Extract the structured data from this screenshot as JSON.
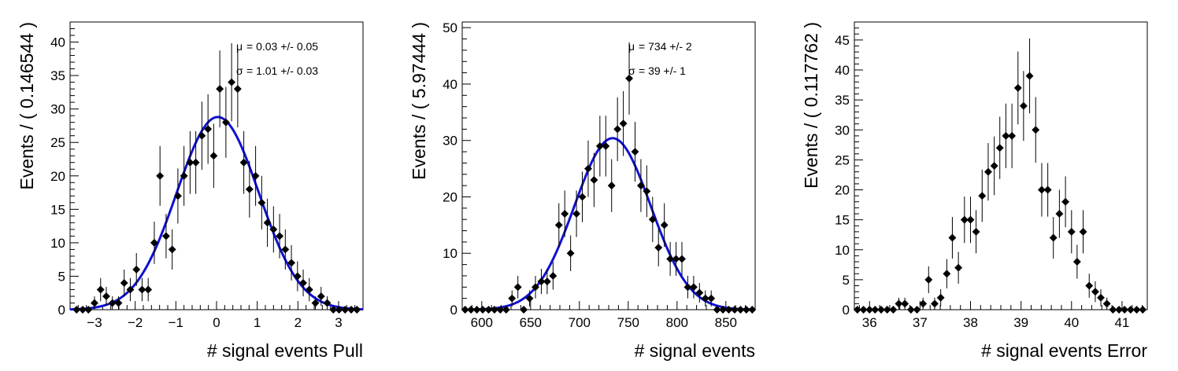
{
  "chart_data": [
    {
      "type": "scatter",
      "xlabel": "# signal events Pull",
      "ylabel": "Events / ( 0.146544 )",
      "xlim": [
        -3.6,
        3.6
      ],
      "ylim": [
        0,
        43
      ],
      "xticks": [
        -3,
        -2,
        -1,
        0,
        1,
        2,
        3
      ],
      "yticks": [
        0,
        5,
        10,
        15,
        20,
        25,
        30,
        35,
        40
      ],
      "legend": "none",
      "grid": false,
      "fit": {
        "type": "gaussian",
        "mu": 0.03,
        "sigma": 1.01,
        "amplitude": 28.8,
        "color": "#1010d0"
      },
      "annotations": [
        {
          "symbol": "μ",
          "text": "= 0.03 +/- 0.05"
        },
        {
          "symbol": "σ",
          "text": "= 1.01 +/- 0.03"
        }
      ],
      "points": {
        "x": [
          -3.44,
          -3.29,
          -3.15,
          -3.0,
          -2.85,
          -2.71,
          -2.56,
          -2.41,
          -2.27,
          -2.12,
          -1.97,
          -1.83,
          -1.68,
          -1.53,
          -1.39,
          -1.24,
          -1.09,
          -0.95,
          -0.8,
          -0.65,
          -0.51,
          -0.36,
          -0.21,
          -0.07,
          0.08,
          0.23,
          0.37,
          0.52,
          0.67,
          0.81,
          0.96,
          1.11,
          1.25,
          1.4,
          1.55,
          1.69,
          1.84,
          1.99,
          2.13,
          2.28,
          2.43,
          2.57,
          2.72,
          2.87,
          3.01,
          3.16,
          3.31,
          3.45
        ],
        "y": [
          0,
          0,
          0,
          1,
          3,
          2,
          1,
          1,
          4,
          3,
          6,
          3,
          3,
          10,
          20,
          11,
          9,
          17,
          20,
          22,
          22,
          26,
          27,
          23,
          33,
          28,
          34,
          33,
          22,
          18,
          20,
          16,
          13,
          12,
          11,
          9,
          7,
          5,
          4,
          3,
          1,
          2,
          1,
          0,
          0,
          0,
          0,
          0
        ]
      }
    },
    {
      "type": "scatter",
      "xlabel": "# signal events",
      "ylabel": "Events / ( 5.97444 )",
      "xlim": [
        580,
        880
      ],
      "ylim": [
        0,
        51
      ],
      "xticks": [
        600,
        650,
        700,
        750,
        800,
        850
      ],
      "yticks": [
        0,
        10,
        20,
        30,
        40,
        50
      ],
      "legend": "none",
      "grid": false,
      "fit": {
        "type": "gaussian",
        "mu": 734,
        "sigma": 39,
        "amplitude": 30.4,
        "color": "#1010d0"
      },
      "annotations": [
        {
          "symbol": "μ",
          "text": "= 734 +/- 2"
        },
        {
          "symbol": "σ",
          "text": "= 39 +/- 1"
        }
      ],
      "points": {
        "x": [
          583,
          589,
          595,
          601,
          607,
          613,
          619,
          625,
          631,
          637,
          643,
          649,
          655,
          661,
          667,
          673,
          679,
          685,
          691,
          697,
          703,
          709,
          715,
          721,
          727,
          733,
          739,
          745,
          751,
          757,
          763,
          769,
          775,
          781,
          787,
          793,
          799,
          805,
          811,
          817,
          823,
          829,
          835,
          841,
          847,
          853,
          859,
          865,
          871,
          877
        ],
        "y": [
          0,
          0,
          0,
          0,
          0,
          0,
          0,
          0,
          2,
          4,
          0,
          2,
          4,
          5,
          5,
          6,
          15,
          17,
          10,
          17,
          20,
          25,
          23,
          29,
          29,
          22,
          32,
          33,
          41,
          28,
          22,
          21,
          16,
          11,
          15,
          9,
          9,
          9,
          4,
          4,
          3,
          2,
          2,
          0,
          0,
          0,
          0,
          0,
          0,
          0
        ]
      }
    },
    {
      "type": "scatter",
      "xlabel": "# signal events Error",
      "ylabel": "Events / ( 0.117762 )",
      "xlim": [
        35.7,
        41.5
      ],
      "ylim": [
        0,
        48
      ],
      "xticks": [
        36,
        37,
        38,
        39,
        40,
        41
      ],
      "yticks": [
        0,
        5,
        10,
        15,
        20,
        25,
        30,
        35,
        40,
        45
      ],
      "legend": "none",
      "grid": false,
      "points": {
        "x": [
          35.76,
          35.88,
          36.0,
          36.11,
          36.23,
          36.35,
          36.47,
          36.58,
          36.7,
          36.82,
          36.94,
          37.06,
          37.17,
          37.29,
          37.41,
          37.53,
          37.64,
          37.76,
          37.88,
          38.0,
          38.11,
          38.23,
          38.35,
          38.47,
          38.58,
          38.7,
          38.82,
          38.94,
          39.05,
          39.17,
          39.29,
          39.41,
          39.53,
          39.64,
          39.76,
          39.88,
          40.0,
          40.11,
          40.23,
          40.35,
          40.47,
          40.58,
          40.7,
          40.82,
          40.94,
          41.05,
          41.17,
          41.29,
          41.41
        ],
        "y": [
          0,
          0,
          0,
          0,
          0,
          0,
          0,
          1,
          1,
          0,
          0,
          1,
          5,
          1,
          2,
          6,
          12,
          7,
          15,
          15,
          13,
          19,
          23,
          24,
          27,
          29,
          29,
          37,
          34,
          39,
          30,
          20,
          20,
          12,
          16,
          18,
          13,
          8,
          13,
          4,
          3,
          2,
          1,
          0,
          0,
          0,
          0,
          0,
          0
        ]
      }
    }
  ]
}
